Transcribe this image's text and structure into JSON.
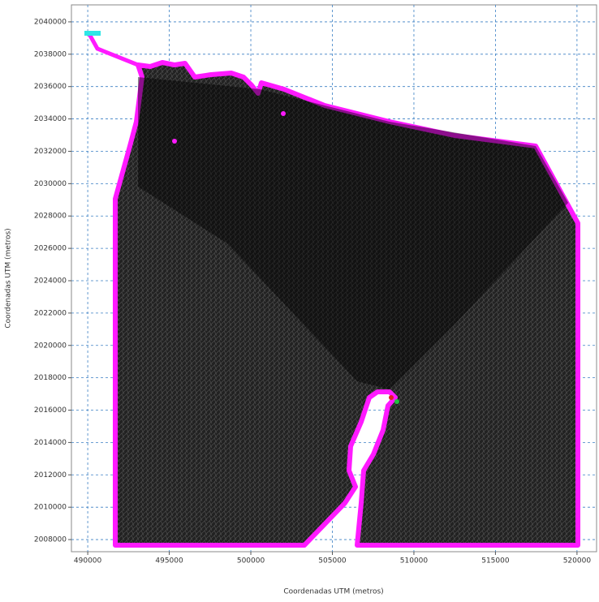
{
  "chart_data": {
    "type": "mesh",
    "xlabel": "Coordenadas UTM (metros)",
    "ylabel": "Coordenadas UTM (metros)",
    "xlim": [
      489000,
      521200
    ],
    "ylim": [
      2007250,
      2041050
    ],
    "xticks": [
      490000,
      495000,
      500000,
      505000,
      510000,
      515000,
      520000
    ],
    "yticks": [
      2008000,
      2010000,
      2012000,
      2014000,
      2016000,
      2018000,
      2020000,
      2022000,
      2024000,
      2026000,
      2028000,
      2030000,
      2032000,
      2034000,
      2036000,
      2038000,
      2040000
    ],
    "grid": true
  }
}
